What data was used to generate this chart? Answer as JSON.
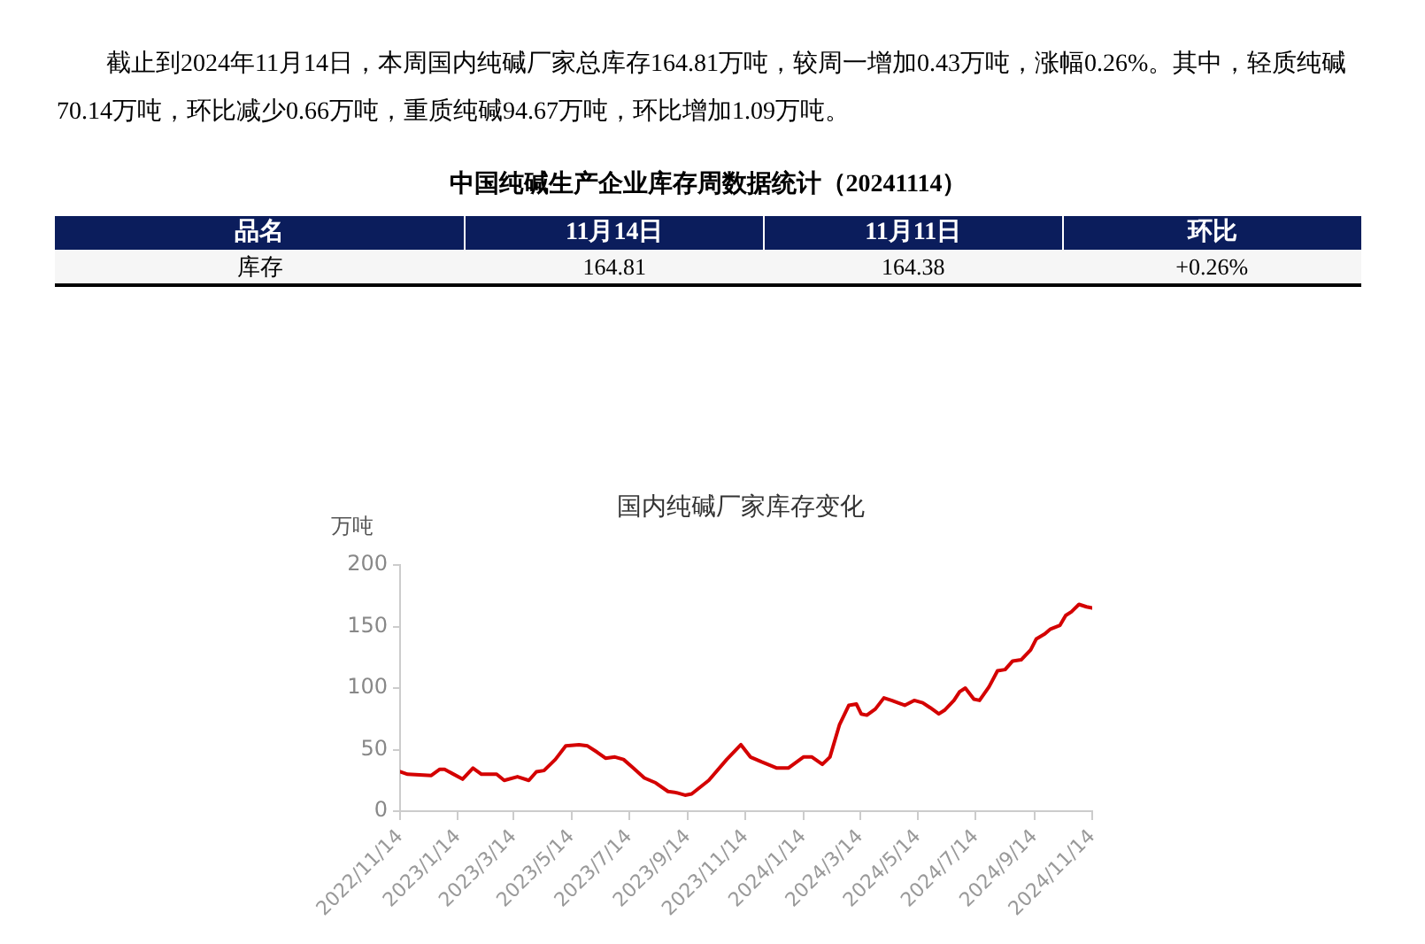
{
  "chart_data": [
    {
      "type": "other",
      "annotations": [
        "截止到2024年11月14日，本周国内纯碱厂家总库存164.81万吨，较周一增加0.43万吨，涨幅0.26%。其中，轻质纯碱70.14万吨，环比减少0.66万吨，重质纯碱94.67万吨，环比增加1.09万吨。"
      ]
    },
    {
      "type": "other",
      "title": "中国纯碱生产企业库存周数据统计（20241114）",
      "categories": [
        "品名",
        "11月14日",
        "11月11日",
        "环比"
      ],
      "annotations": [
        "库存",
        "164.81",
        "164.38",
        "+0.26%"
      ]
    },
    {
      "type": "line",
      "title": "国内纯碱厂家库存变化",
      "ylabel": "万吨",
      "color": "#d40000",
      "marker": "none",
      "line_style": "solid",
      "grid": false,
      "x": [
        "2022-11-14",
        "2022-11-22",
        "2022-12-17",
        "2022-12-26",
        "2022-12-31",
        "2023-01-19",
        "2023-01-30",
        "2023-02-08",
        "2023-02-24",
        "2023-03-04",
        "2023-03-18",
        "2023-03-30",
        "2023-04-07",
        "2023-04-15",
        "2023-04-27",
        "2023-05-08",
        "2023-05-22",
        "2023-05-31",
        "2023-06-10",
        "2023-06-19",
        "2023-06-29",
        "2023-07-08",
        "2023-07-17",
        "2023-07-30",
        "2023-08-11",
        "2023-08-24",
        "2023-09-02",
        "2023-09-11",
        "2023-09-18",
        "2023-10-06",
        "2023-10-25",
        "2023-11-09",
        "2023-11-19",
        "2023-12-01",
        "2023-12-17",
        "2023-12-29",
        "2024-01-14",
        "2024-01-23",
        "2024-02-03",
        "2024-02-11",
        "2024-02-21",
        "2024-03-02",
        "2024-03-10",
        "2024-03-15",
        "2024-03-21",
        "2024-03-30",
        "2024-04-08",
        "2024-04-16",
        "2024-04-30",
        "2024-05-10",
        "2024-05-19",
        "2024-05-27",
        "2024-06-05",
        "2024-06-11",
        "2024-06-21",
        "2024-06-27",
        "2024-07-03",
        "2024-07-12",
        "2024-07-18",
        "2024-07-28",
        "2024-08-06",
        "2024-08-14",
        "2024-08-22",
        "2024-08-31",
        "2024-09-10",
        "2024-09-16",
        "2024-09-25",
        "2024-10-01",
        "2024-10-11",
        "2024-10-17",
        "2024-10-23",
        "2024-10-31",
        "2024-11-08",
        "2024-11-14"
      ],
      "values": [
        32,
        30,
        29,
        34,
        34,
        26,
        35,
        30,
        30,
        25,
        28,
        25,
        32,
        33,
        42,
        53,
        54,
        53,
        48,
        43,
        44,
        42,
        36,
        27,
        23,
        16,
        15,
        13,
        14,
        25,
        42,
        54,
        44,
        40,
        35,
        35,
        44,
        44,
        38,
        44,
        70,
        86,
        87,
        79,
        78,
        83,
        92,
        90,
        86,
        90,
        88,
        84,
        79,
        82,
        90,
        97,
        100,
        91,
        90,
        101,
        114,
        115,
        122,
        123,
        131,
        140,
        144,
        148,
        151,
        159,
        162,
        168,
        166,
        165
      ],
      "xlim": [
        "2022-11-14",
        "2024-11-14"
      ],
      "xticks": [
        {
          "value": "2022-11-14",
          "label": "2022/11/14"
        },
        {
          "value": "2023-01-14",
          "label": "2023/1/14"
        },
        {
          "value": "2023-03-14",
          "label": "2023/3/14"
        },
        {
          "value": "2023-05-14",
          "label": "2023/5/14"
        },
        {
          "value": "2023-07-14",
          "label": "2023/7/14"
        },
        {
          "value": "2023-09-14",
          "label": "2023/9/14"
        },
        {
          "value": "2023-11-14",
          "label": "2023/11/14"
        },
        {
          "value": "2024-01-14",
          "label": "2024/1/14"
        },
        {
          "value": "2024-03-14",
          "label": "2024/3/14"
        },
        {
          "value": "2024-05-14",
          "label": "2024/5/14"
        },
        {
          "value": "2024-07-14",
          "label": "2024/7/14"
        },
        {
          "value": "2024-09-14",
          "label": "2024/9/14"
        },
        {
          "value": "2024-11-14",
          "label": "2024/11/14"
        }
      ],
      "ylim": [
        0,
        200
      ],
      "yticks": [
        0,
        50,
        100,
        150,
        200
      ]
    }
  ]
}
